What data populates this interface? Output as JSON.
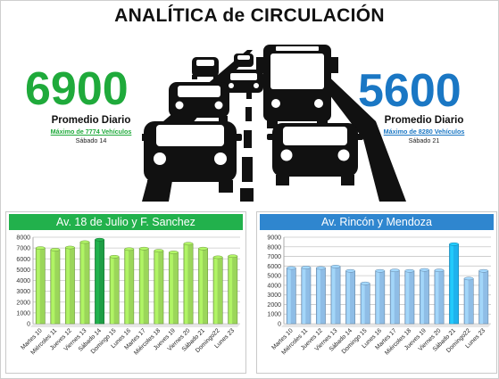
{
  "header": {
    "title": "ANALÍTICA de CIRCULACIÓN"
  },
  "left_stat": {
    "value": "6900",
    "label": "Promedio Diario",
    "max_text": "Máximo de 7774 Vehículos",
    "max_day": "Sábado 14",
    "color": "#1faa3b"
  },
  "right_stat": {
    "value": "5600",
    "label": "Promedio Diario",
    "max_text": "Máximo de 8280 Vehículos",
    "max_day": "Sábado 21",
    "color": "#1a77c4"
  },
  "chart_data": [
    {
      "type": "bar",
      "title": "Av. 18 de Julio y F. Sanchez",
      "categories": [
        "Martes 10",
        "Miércoles 11",
        "Jueves 12",
        "Viernes 13",
        "Sábado 14",
        "Domingo 15",
        "Lunes 16",
        "Martes 17",
        "Miércoles 18",
        "Jueves 19",
        "Viernes 20",
        "Sábado 21",
        "Domingo22",
        "Lunes 23"
      ],
      "values": [
        7000,
        6850,
        7050,
        7550,
        7774,
        6200,
        6900,
        6950,
        6750,
        6600,
        7400,
        6950,
        6150,
        6250
      ],
      "highlight_index": 4,
      "ylim": [
        0,
        8000
      ],
      "yticks": [
        0,
        1000,
        2000,
        3000,
        4000,
        5000,
        6000,
        7000,
        8000
      ],
      "grid": true,
      "bar_color": "#9bd65a",
      "highlight_color": "#1e9e45"
    },
    {
      "type": "bar",
      "title": "Av. Rincón y Mendoza",
      "categories": [
        "Martes 10",
        "Miércoles 11",
        "Jueves 12",
        "Viernes 13",
        "Sábado 14",
        "Domingo 15",
        "Lunes 16",
        "Martes 17",
        "Miércoles 18",
        "Jueves 19",
        "Viernes 20",
        "Sábado 21",
        "Domingo22",
        "Lunes 23"
      ],
      "values": [
        5800,
        5850,
        5800,
        5950,
        5500,
        4200,
        5500,
        5550,
        5500,
        5600,
        5550,
        8280,
        4700,
        5500
      ],
      "highlight_index": 11,
      "ylim": [
        0,
        9000
      ],
      "yticks": [
        0,
        1000,
        2000,
        3000,
        4000,
        5000,
        6000,
        7000,
        8000,
        9000
      ],
      "grid": true,
      "bar_color": "#8fbde6",
      "highlight_color": "#1fb2ee"
    }
  ]
}
